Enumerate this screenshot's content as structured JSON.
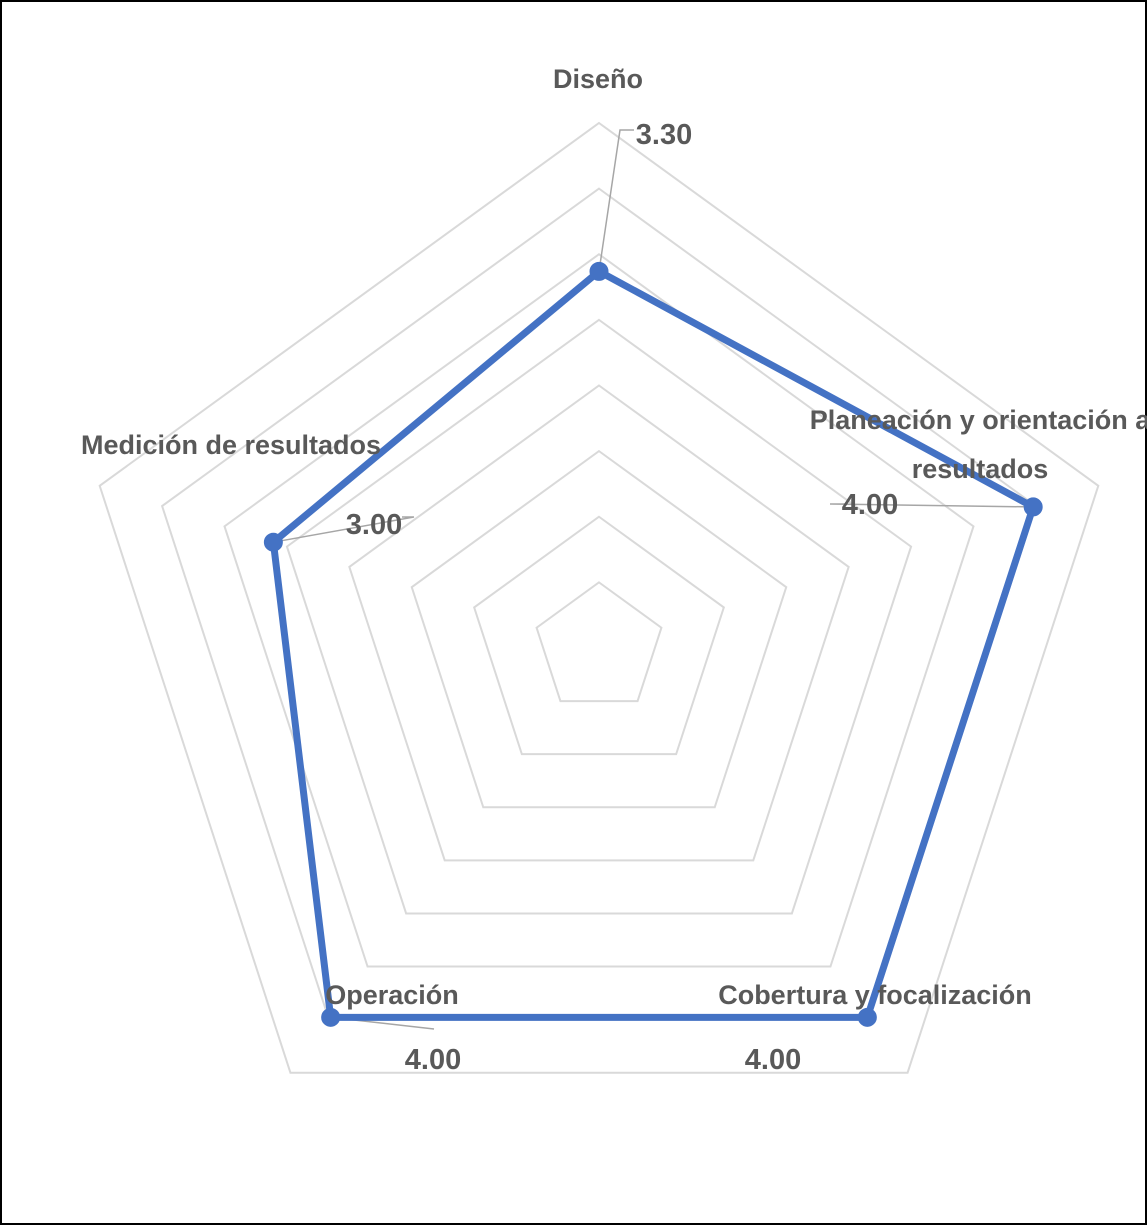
{
  "chart_data": {
    "type": "radar",
    "categories": [
      "Diseño",
      "Planeación y orientación a resultados",
      "Cobertura y focalización",
      "Operación",
      "Medición de resultados"
    ],
    "series": [
      {
        "values": [
          3.3,
          4.0,
          4.0,
          4.0,
          3.0
        ]
      }
    ],
    "data_labels": [
      "3.30",
      "4.00",
      "4.00",
      "4.00",
      "3.00"
    ],
    "rmin": 0,
    "rmax": 4.6,
    "gridline_rings": 8,
    "legend": "none",
    "colors": {
      "series": "#4472C4",
      "grid": "#D9D9D9",
      "text": "#595959",
      "leader": "#A6A6A6",
      "border": "#000000"
    }
  }
}
